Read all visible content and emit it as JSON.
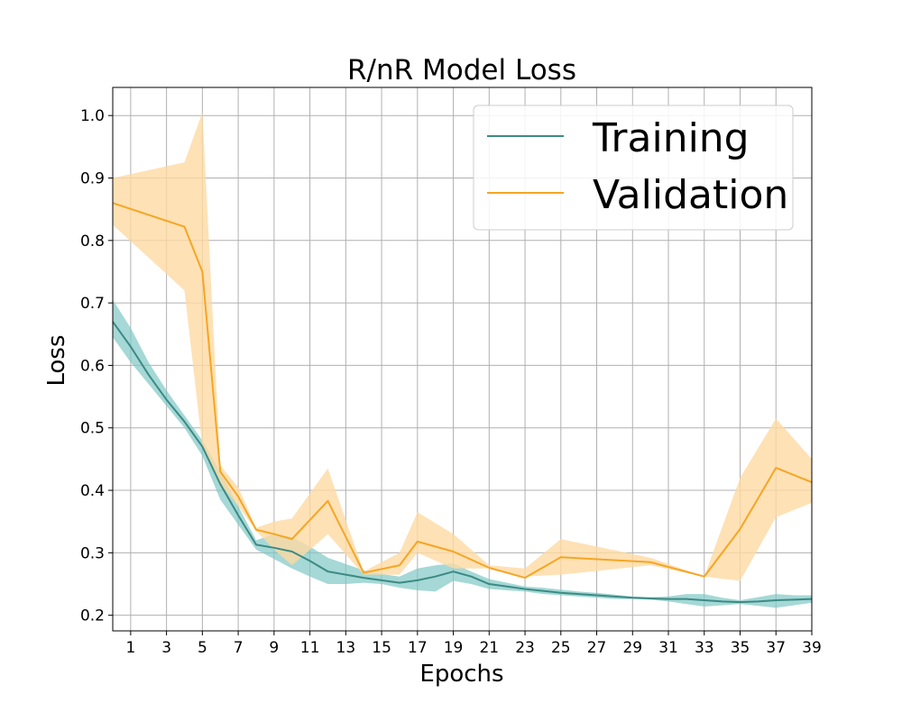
{
  "chart_data": {
    "type": "line",
    "title": "R/nR Model Loss",
    "xlabel": "Epochs",
    "ylabel": "Loss",
    "xlim": [
      0,
      39
    ],
    "ylim": [
      0.175,
      1.045
    ],
    "xticks": [
      1,
      3,
      5,
      7,
      9,
      11,
      13,
      15,
      17,
      19,
      21,
      23,
      25,
      27,
      29,
      31,
      33,
      35,
      37,
      39
    ],
    "xtick_labels": [
      "1",
      "3",
      "5",
      "7",
      "9",
      "11",
      "13",
      "15",
      "17",
      "19",
      "21",
      "23",
      "25",
      "27",
      "29",
      "31",
      "33",
      "35",
      "37",
      "39"
    ],
    "yticks": [
      0.2,
      0.3,
      0.4,
      0.5,
      0.6,
      0.7,
      0.8,
      0.9,
      1.0
    ],
    "ytick_labels": [
      "0.2",
      "0.3",
      "0.4",
      "0.5",
      "0.6",
      "0.7",
      "0.8",
      "0.9",
      "1.0"
    ],
    "grid": true,
    "legend_position": "top-right",
    "series": [
      {
        "name": "Training",
        "color": "#3c8a84",
        "band_color": "#7fc8c4",
        "x": [
          0,
          1,
          2,
          3,
          4,
          5,
          6,
          7,
          8,
          9,
          10,
          11,
          12,
          13,
          14,
          15,
          16,
          17,
          18,
          19,
          20,
          21,
          22,
          23,
          24,
          25,
          26,
          27,
          28,
          29,
          30,
          31,
          32,
          33,
          34,
          35,
          36,
          37,
          38,
          39
        ],
        "values": [
          0.67,
          0.63,
          0.585,
          0.545,
          0.51,
          0.47,
          0.41,
          0.36,
          0.313,
          0.308,
          0.302,
          0.287,
          0.27,
          0.265,
          0.26,
          0.256,
          0.252,
          0.256,
          0.262,
          0.27,
          0.262,
          0.25,
          0.246,
          0.242,
          0.239,
          0.236,
          0.234,
          0.232,
          0.23,
          0.228,
          0.227,
          0.226,
          0.226,
          0.224,
          0.222,
          0.221,
          0.222,
          0.224,
          0.225,
          0.226
        ],
        "lower": [
          0.645,
          0.605,
          0.57,
          0.535,
          0.5,
          0.455,
          0.385,
          0.345,
          0.305,
          0.29,
          0.275,
          0.262,
          0.25,
          0.25,
          0.252,
          0.25,
          0.244,
          0.24,
          0.238,
          0.255,
          0.25,
          0.242,
          0.24,
          0.238,
          0.234,
          0.232,
          0.23,
          0.228,
          0.226,
          0.226,
          0.225,
          0.222,
          0.218,
          0.214,
          0.216,
          0.218,
          0.215,
          0.212,
          0.216,
          0.22
        ],
        "upper": [
          0.705,
          0.66,
          0.605,
          0.56,
          0.52,
          0.48,
          0.43,
          0.375,
          0.32,
          0.33,
          0.325,
          0.31,
          0.292,
          0.282,
          0.272,
          0.266,
          0.262,
          0.275,
          0.28,
          0.283,
          0.27,
          0.258,
          0.252,
          0.246,
          0.244,
          0.241,
          0.238,
          0.236,
          0.233,
          0.23,
          0.229,
          0.23,
          0.234,
          0.234,
          0.228,
          0.224,
          0.229,
          0.234,
          0.232,
          0.232
        ]
      },
      {
        "name": "Validation",
        "color": "#f5a623",
        "band_color": "#fed9a3",
        "x": [
          0,
          4,
          5,
          6,
          7,
          8,
          9,
          10,
          12,
          14,
          16,
          17,
          19,
          21,
          23,
          25,
          30,
          33,
          35,
          37,
          39
        ],
        "values": [
          0.86,
          0.822,
          0.75,
          0.43,
          0.39,
          0.337,
          0.33,
          0.322,
          0.383,
          0.268,
          0.28,
          0.318,
          0.302,
          0.276,
          0.26,
          0.293,
          0.285,
          0.262,
          0.338,
          0.436,
          0.413
        ],
        "lower": [
          0.825,
          0.72,
          0.47,
          0.41,
          0.375,
          0.335,
          0.305,
          0.28,
          0.33,
          0.265,
          0.265,
          0.3,
          0.275,
          0.275,
          0.262,
          0.265,
          0.28,
          0.262,
          0.255,
          0.357,
          0.38
        ],
        "upper": [
          0.9,
          0.925,
          1.005,
          0.44,
          0.405,
          0.34,
          0.35,
          0.355,
          0.435,
          0.27,
          0.3,
          0.365,
          0.33,
          0.28,
          0.275,
          0.322,
          0.292,
          0.262,
          0.42,
          0.515,
          0.45
        ]
      }
    ]
  }
}
